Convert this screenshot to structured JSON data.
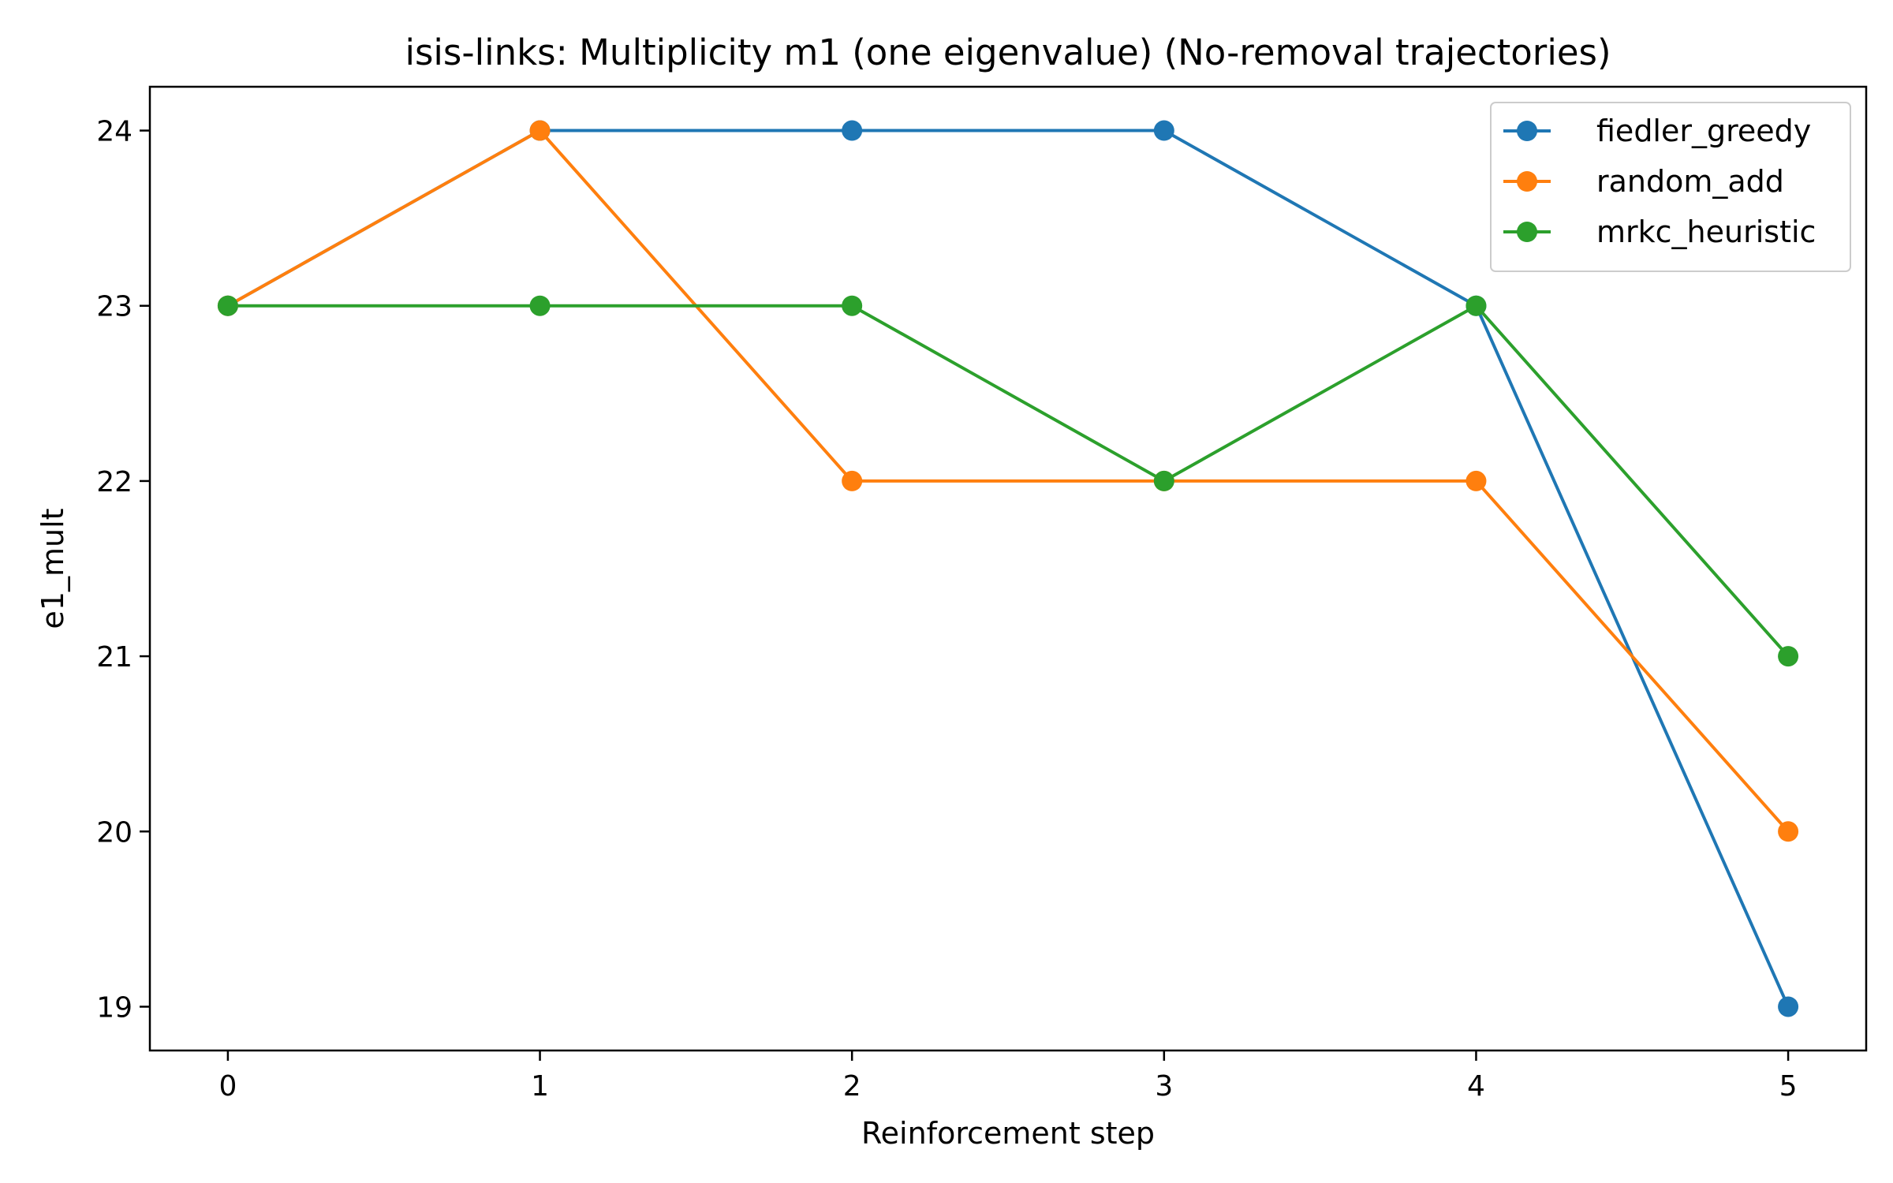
{
  "chart_data": {
    "type": "line",
    "title": "isis-links: Multiplicity m1 (one eigenvalue) (No-removal trajectories)",
    "xlabel": "Reinforcement step",
    "ylabel": "e1_mult",
    "x": [
      0,
      1,
      2,
      3,
      4,
      5
    ],
    "xlim": [
      -0.25,
      5.25
    ],
    "ylim": [
      18.75,
      24.25
    ],
    "xticks": [
      "0",
      "1",
      "2",
      "3",
      "4",
      "5"
    ],
    "yticks": [
      "19",
      "20",
      "21",
      "22",
      "23",
      "24"
    ],
    "grid": false,
    "legend_position": "top-right",
    "marker": "circle",
    "series": [
      {
        "name": "fiedler_greedy",
        "color": "#1f77b4",
        "values": [
          23,
          24,
          24,
          24,
          23,
          19
        ]
      },
      {
        "name": "random_add",
        "color": "#ff7f0e",
        "values": [
          23,
          24,
          22,
          22,
          22,
          20
        ]
      },
      {
        "name": "mrkc_heuristic",
        "color": "#2ca02c",
        "values": [
          23,
          23,
          23,
          22,
          23,
          21
        ]
      }
    ]
  }
}
